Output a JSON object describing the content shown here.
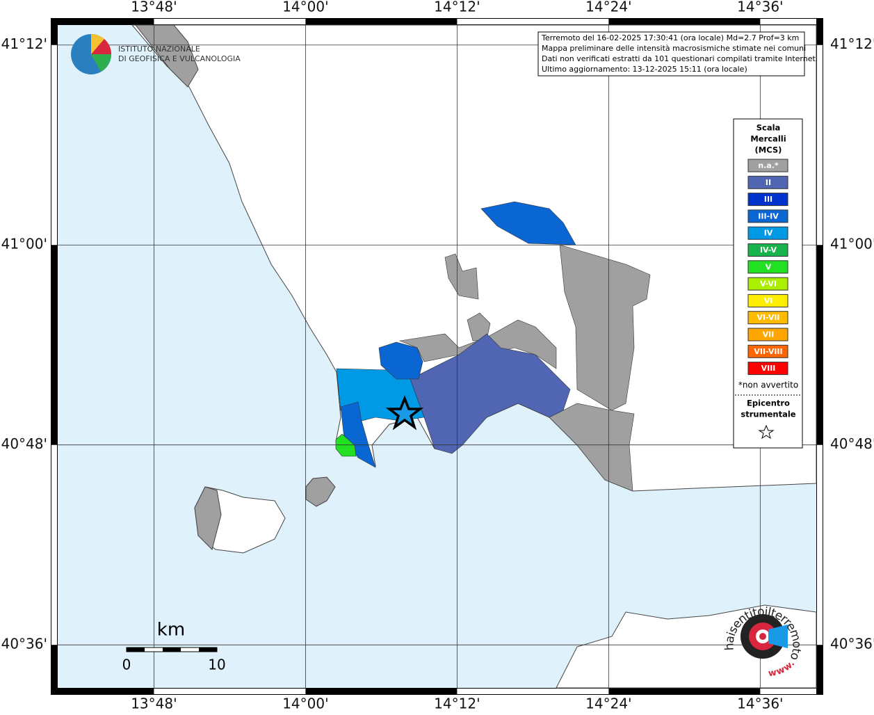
{
  "map": {
    "lonlim": [
      13.673,
      14.674
    ],
    "latlim": [
      40.557,
      41.22
    ],
    "grid": true,
    "lon_ticks": [
      {
        "value": 13.8,
        "label": "13°48'"
      },
      {
        "value": 14.0,
        "label": "14°00'"
      },
      {
        "value": 14.2,
        "label": "14°12'"
      },
      {
        "value": 14.4,
        "label": "14°24'"
      },
      {
        "value": 14.6,
        "label": "14°36'"
      }
    ],
    "lat_ticks": [
      {
        "value": 41.2,
        "label": "41°12'"
      },
      {
        "value": 41.0,
        "label": "41°00'"
      },
      {
        "value": 40.8,
        "label": "40°48'"
      },
      {
        "value": 40.6,
        "label": "40°36'"
      }
    ]
  },
  "logo": {
    "lines": [
      "ISTITUTO NAZIONALE",
      "DI GEOFISICA E VULCANOLOGIA"
    ]
  },
  "info": {
    "lines": [
      "Terremoto del 16-02-2025 17:30:41 (ora locale) Md=2.7 Prof=3 km",
      "Mappa preliminare delle intensità macrosismiche stimate nei comuni",
      "Dati non verificati estratti da 101 questionari compilati tramite Internet.",
      "Ultimo aggiornamento: 13-12-2025 15:11 (ora locale)"
    ]
  },
  "legend": {
    "title": [
      "Scala",
      "Mercalli",
      "(MCS)"
    ],
    "items": [
      {
        "label": "n.a.*",
        "color": "#a0a0a0"
      },
      {
        "label": "II",
        "color": "#5066b3"
      },
      {
        "label": "III",
        "color": "#0033cc"
      },
      {
        "label": "III-IV",
        "color": "#0a66d2"
      },
      {
        "label": "IV",
        "color": "#0099e6"
      },
      {
        "label": "IV-V",
        "color": "#19b34d"
      },
      {
        "label": "V",
        "color": "#22e022"
      },
      {
        "label": "V-VI",
        "color": "#aaee00"
      },
      {
        "label": "VI",
        "color": "#ffee00"
      },
      {
        "label": "VI-VII",
        "color": "#ffbb00"
      },
      {
        "label": "VII",
        "color": "#ffa500"
      },
      {
        "label": "VII-VIII",
        "color": "#ff6600"
      },
      {
        "label": "VIII",
        "color": "#ff0000"
      }
    ],
    "note": "*non avvertito",
    "epicenter": [
      "Epicentro",
      "strumentale"
    ]
  },
  "scale_bar": {
    "unit": "km",
    "ticks": [
      0,
      10
    ]
  },
  "site_logo": {
    "text": "haisentitoilterremoto.it",
    "prefix": "www."
  }
}
